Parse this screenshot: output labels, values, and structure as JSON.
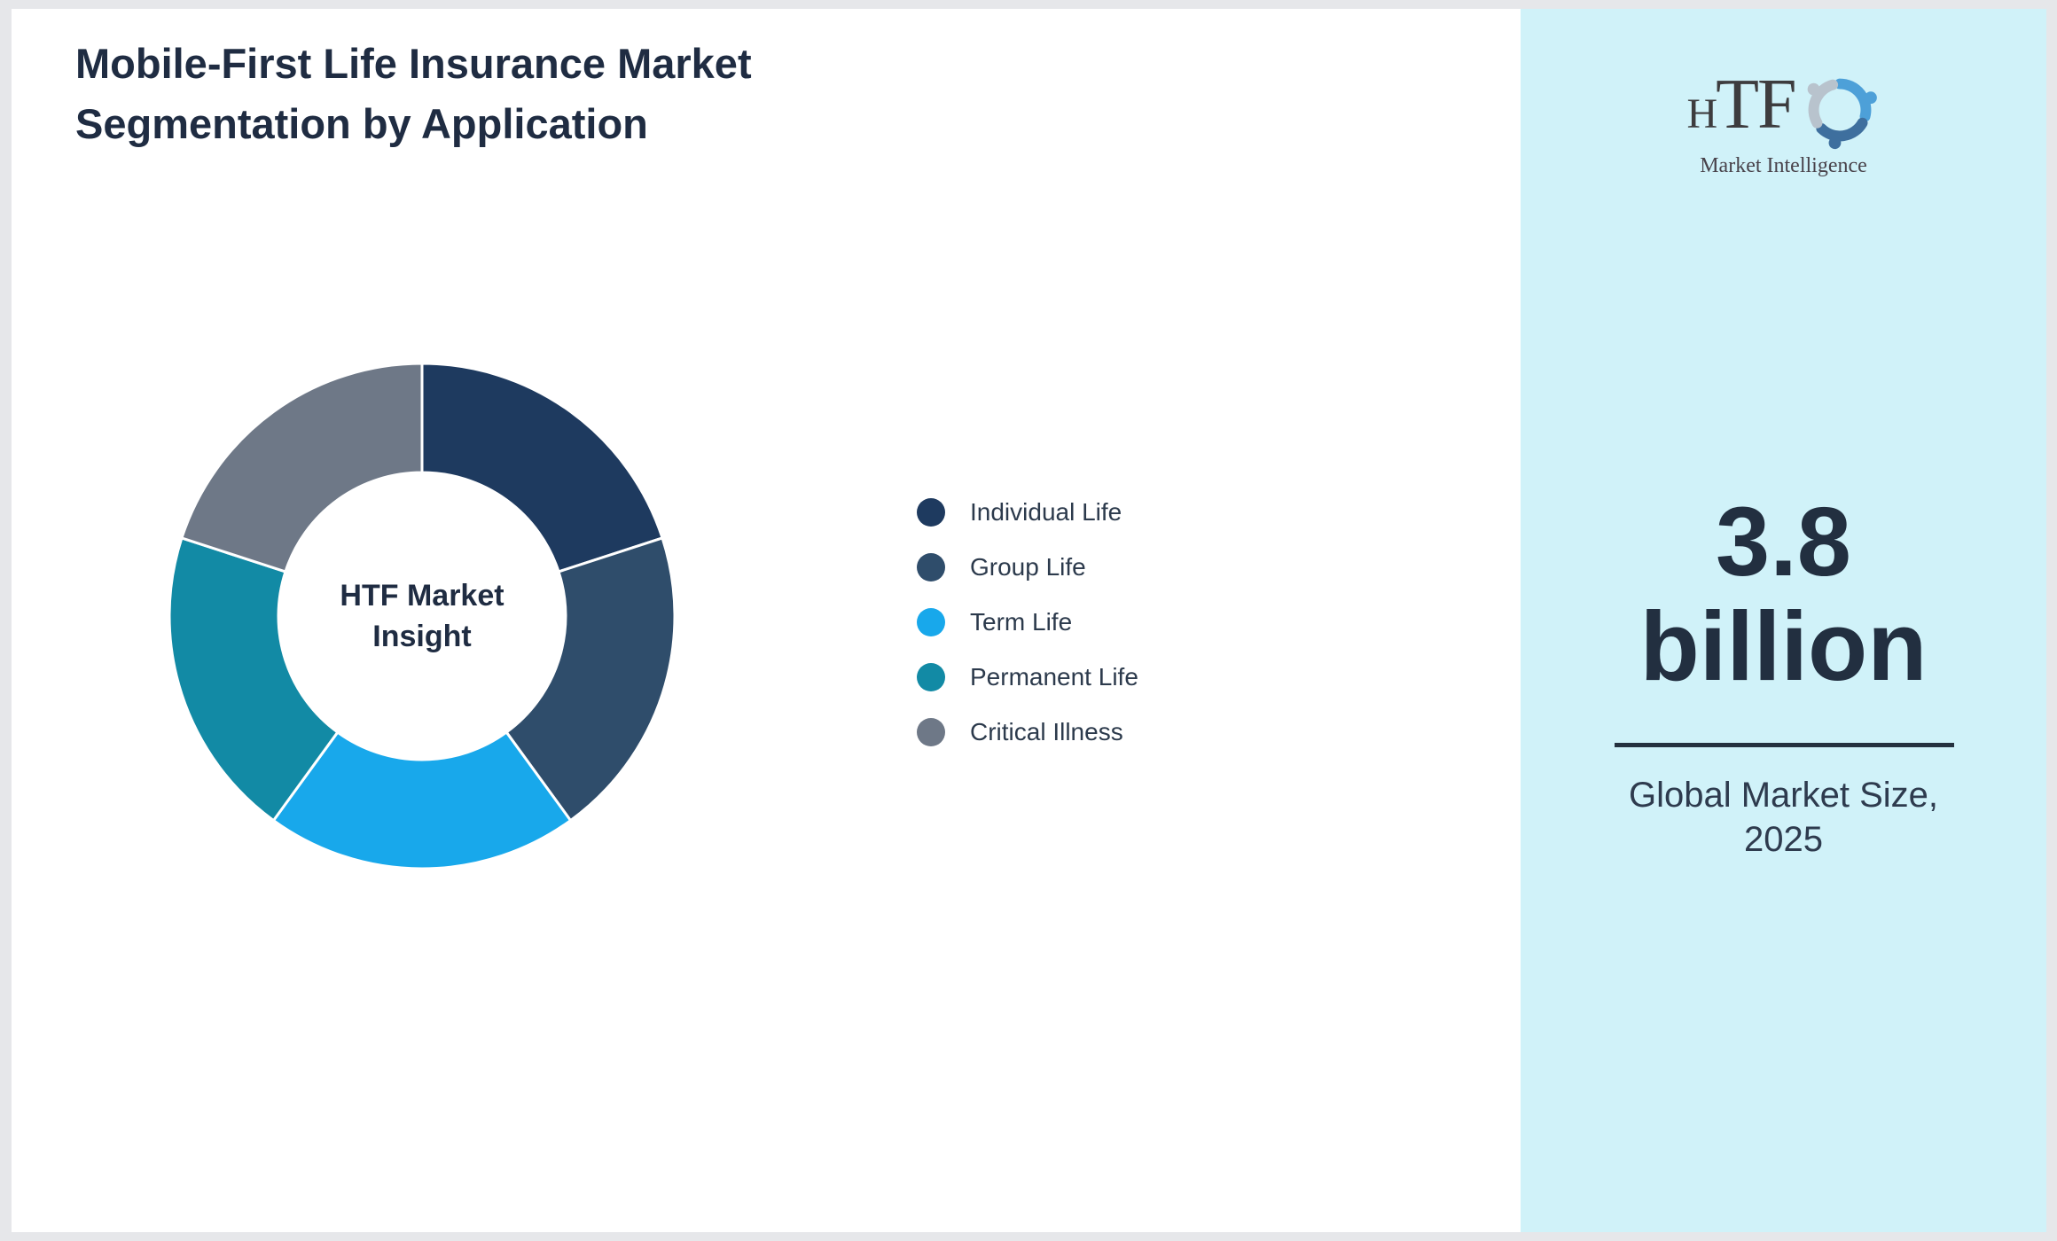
{
  "page": {
    "title": "Mobile-First Life Insurance Market\nSegmentation by Application",
    "background": "#ffffff",
    "frame_color": "#e6e7ea"
  },
  "chart_data": {
    "type": "pie",
    "subtype": "donut",
    "title": "Mobile-First Life Insurance Market Segmentation by Application",
    "center_label": "HTF Market\nInsight",
    "categories": [
      "Individual Life",
      "Group Life",
      "Term Life",
      "Permanent Life",
      "Critical Illness"
    ],
    "values": [
      20,
      20,
      20,
      20,
      20
    ],
    "values_unit": "%",
    "colors": [
      "#1e3a5f",
      "#2f4d6b",
      "#18a8eb",
      "#128aa5",
      "#6e7887"
    ],
    "start_angle_deg": 0,
    "direction": "clockwise",
    "inner_radius_ratio": 0.57,
    "slice_gap_color": "#ffffff",
    "legend_position": "right"
  },
  "sidebar": {
    "background": "#d0f2f9",
    "logo": {
      "text": "HTF",
      "subtext": "Market Intelligence",
      "icon": "dolphin-swirl-icon",
      "icon_colors": [
        "#4da0d8",
        "#3e6f9e",
        "#b8c3cd"
      ]
    },
    "market_size_value": "3.8\nbillion",
    "market_size_caption": "Global Market Size,\n2025"
  }
}
